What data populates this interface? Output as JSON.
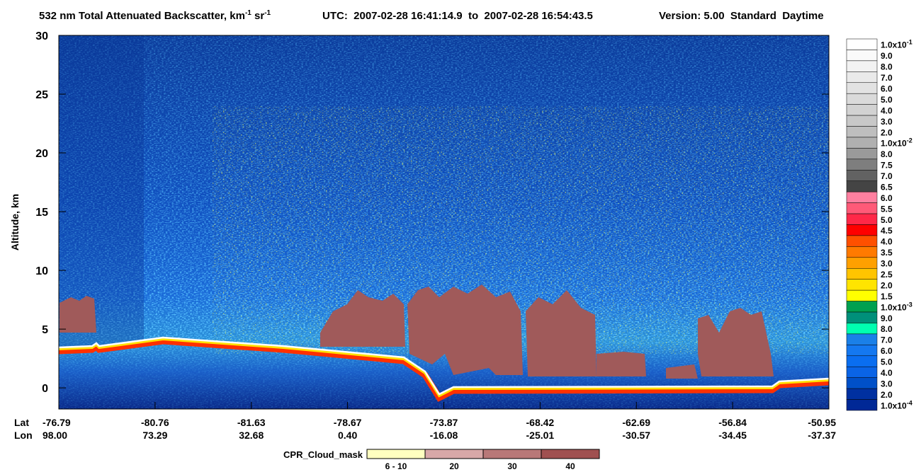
{
  "chart_data": {
    "type": "curtain",
    "title": [
      "532 nm Total Attenuated Backscatter, km",
      "-1",
      " sr",
      "-1"
    ],
    "subtitle": "UTC:  2007-02-28 16:41:14.9  to  2007-02-28 16:54:43.5",
    "version": "Version: 5.00  Standard  Daytime",
    "y_label": "Altitude, km",
    "ylim": [
      -1.8,
      30
    ],
    "yticks": [
      0,
      5,
      10,
      15,
      20,
      25,
      30
    ],
    "x_rows": [
      {
        "name": "Lat",
        "labels": [
          "-76.79",
          "-80.76",
          "-81.63",
          "-78.67",
          "-73.87",
          "-68.42",
          "-62.69",
          "-56.84",
          "-50.95"
        ]
      },
      {
        "name": "Lon",
        "labels": [
          "98.00",
          "73.29",
          "32.68",
          "0.40",
          "-16.08",
          "-25.01",
          "-30.57",
          "-34.45",
          "-37.37"
        ]
      }
    ],
    "colorbar": {
      "labels": [
        {
          "label": "1.0x10",
          "sup": "-1"
        },
        "9.0",
        "8.0",
        "7.0",
        "6.0",
        "5.0",
        "4.0",
        "3.0",
        "2.0",
        {
          "label": "1.0x10",
          "sup": "-2"
        },
        "8.0",
        "7.5",
        "7.0",
        "6.5",
        "6.0",
        "5.5",
        "5.0",
        "4.5",
        "4.0",
        "3.5",
        "3.0",
        "2.5",
        "2.0",
        "1.5",
        {
          "label": "1.0x10",
          "sup": "-3"
        },
        "9.0",
        "8.0",
        "7.0",
        "6.0",
        "5.0",
        "4.0",
        "3.0",
        "2.0",
        {
          "label": "1.0x10",
          "sup": "-4"
        }
      ],
      "colors": [
        "#ffffff",
        "#fafafa",
        "#f2f2f2",
        "#eaeaea",
        "#e2e2e2",
        "#dadada",
        "#d2d2d2",
        "#c8c8c8",
        "#bebebe",
        "#b0b0b0",
        "#9a9a9a",
        "#7e7e7e",
        "#626262",
        "#444444",
        "#ff80a0",
        "#ff5a78",
        "#ff2848",
        "#ff0000",
        "#ff5000",
        "#ff7a00",
        "#ffa000",
        "#ffc400",
        "#ffe400",
        "#ffff00",
        "#00a050",
        "#00907a",
        "#00ffb0",
        "#1a80e8",
        "#1478f0",
        "#0a6ef0",
        "#0a64e6",
        "#0050c8",
        "#0030a0",
        "#002896"
      ]
    },
    "legend": {
      "title": "CPR_Cloud_mask",
      "labels": [
        "6 - 10",
        "20",
        "30",
        "40"
      ],
      "colors": [
        "#ffffc0",
        "#d8a8a8",
        "#b87878",
        "#a05050"
      ]
    }
  }
}
